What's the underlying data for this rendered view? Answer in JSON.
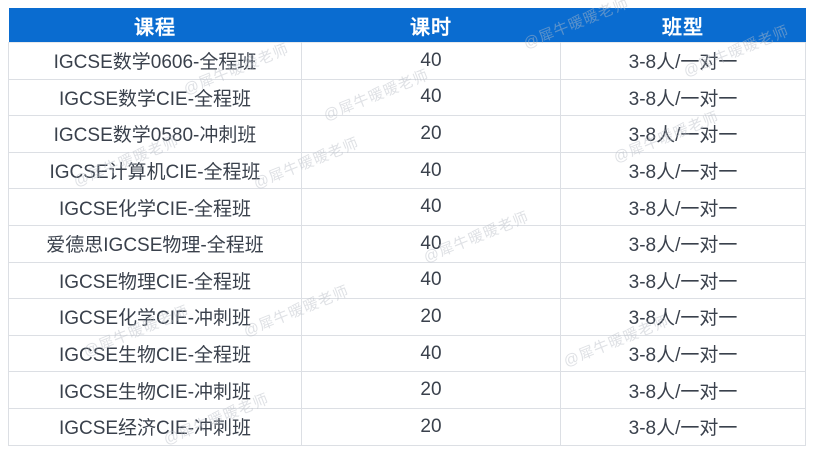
{
  "watermark": {
    "text": "@犀牛暖暖老师"
  },
  "colors": {
    "header_bg": "#0a6cd0",
    "header_text": "#ffffff",
    "cell_text": "#3a414c",
    "border": "#dcdfe4",
    "watermark": "#b9bec6"
  },
  "table": {
    "headers": {
      "course": "课程",
      "hours": "课时",
      "class_type": "班型"
    },
    "rows": [
      {
        "course": "IGCSE数学0606-全程班",
        "hours": "40",
        "class_type": "3-8人/一对一"
      },
      {
        "course": "IGCSE数学CIE-全程班",
        "hours": "40",
        "class_type": "3-8人/一对一"
      },
      {
        "course": "IGCSE数学0580-冲刺班",
        "hours": "20",
        "class_type": "3-8人/一对一"
      },
      {
        "course": "IGCSE计算机CIE-全程班",
        "hours": "40",
        "class_type": "3-8人/一对一"
      },
      {
        "course": "IGCSE化学CIE-全程班",
        "hours": "40",
        "class_type": "3-8人/一对一"
      },
      {
        "course": "爱德思IGCSE物理-全程班",
        "hours": "40",
        "class_type": "3-8人/一对一"
      },
      {
        "course": "IGCSE物理CIE-全程班",
        "hours": "40",
        "class_type": "3-8人/一对一"
      },
      {
        "course": "IGCSE化学CIE-冲刺班",
        "hours": "20",
        "class_type": "3-8人/一对一"
      },
      {
        "course": "IGCSE生物CIE-全程班",
        "hours": "40",
        "class_type": "3-8人/一对一"
      },
      {
        "course": "IGCSE生物CIE-冲刺班",
        "hours": "20",
        "class_type": "3-8人/一对一"
      },
      {
        "course": "IGCSE经济CIE-冲刺班",
        "hours": "20",
        "class_type": "3-8人/一对一"
      }
    ]
  }
}
